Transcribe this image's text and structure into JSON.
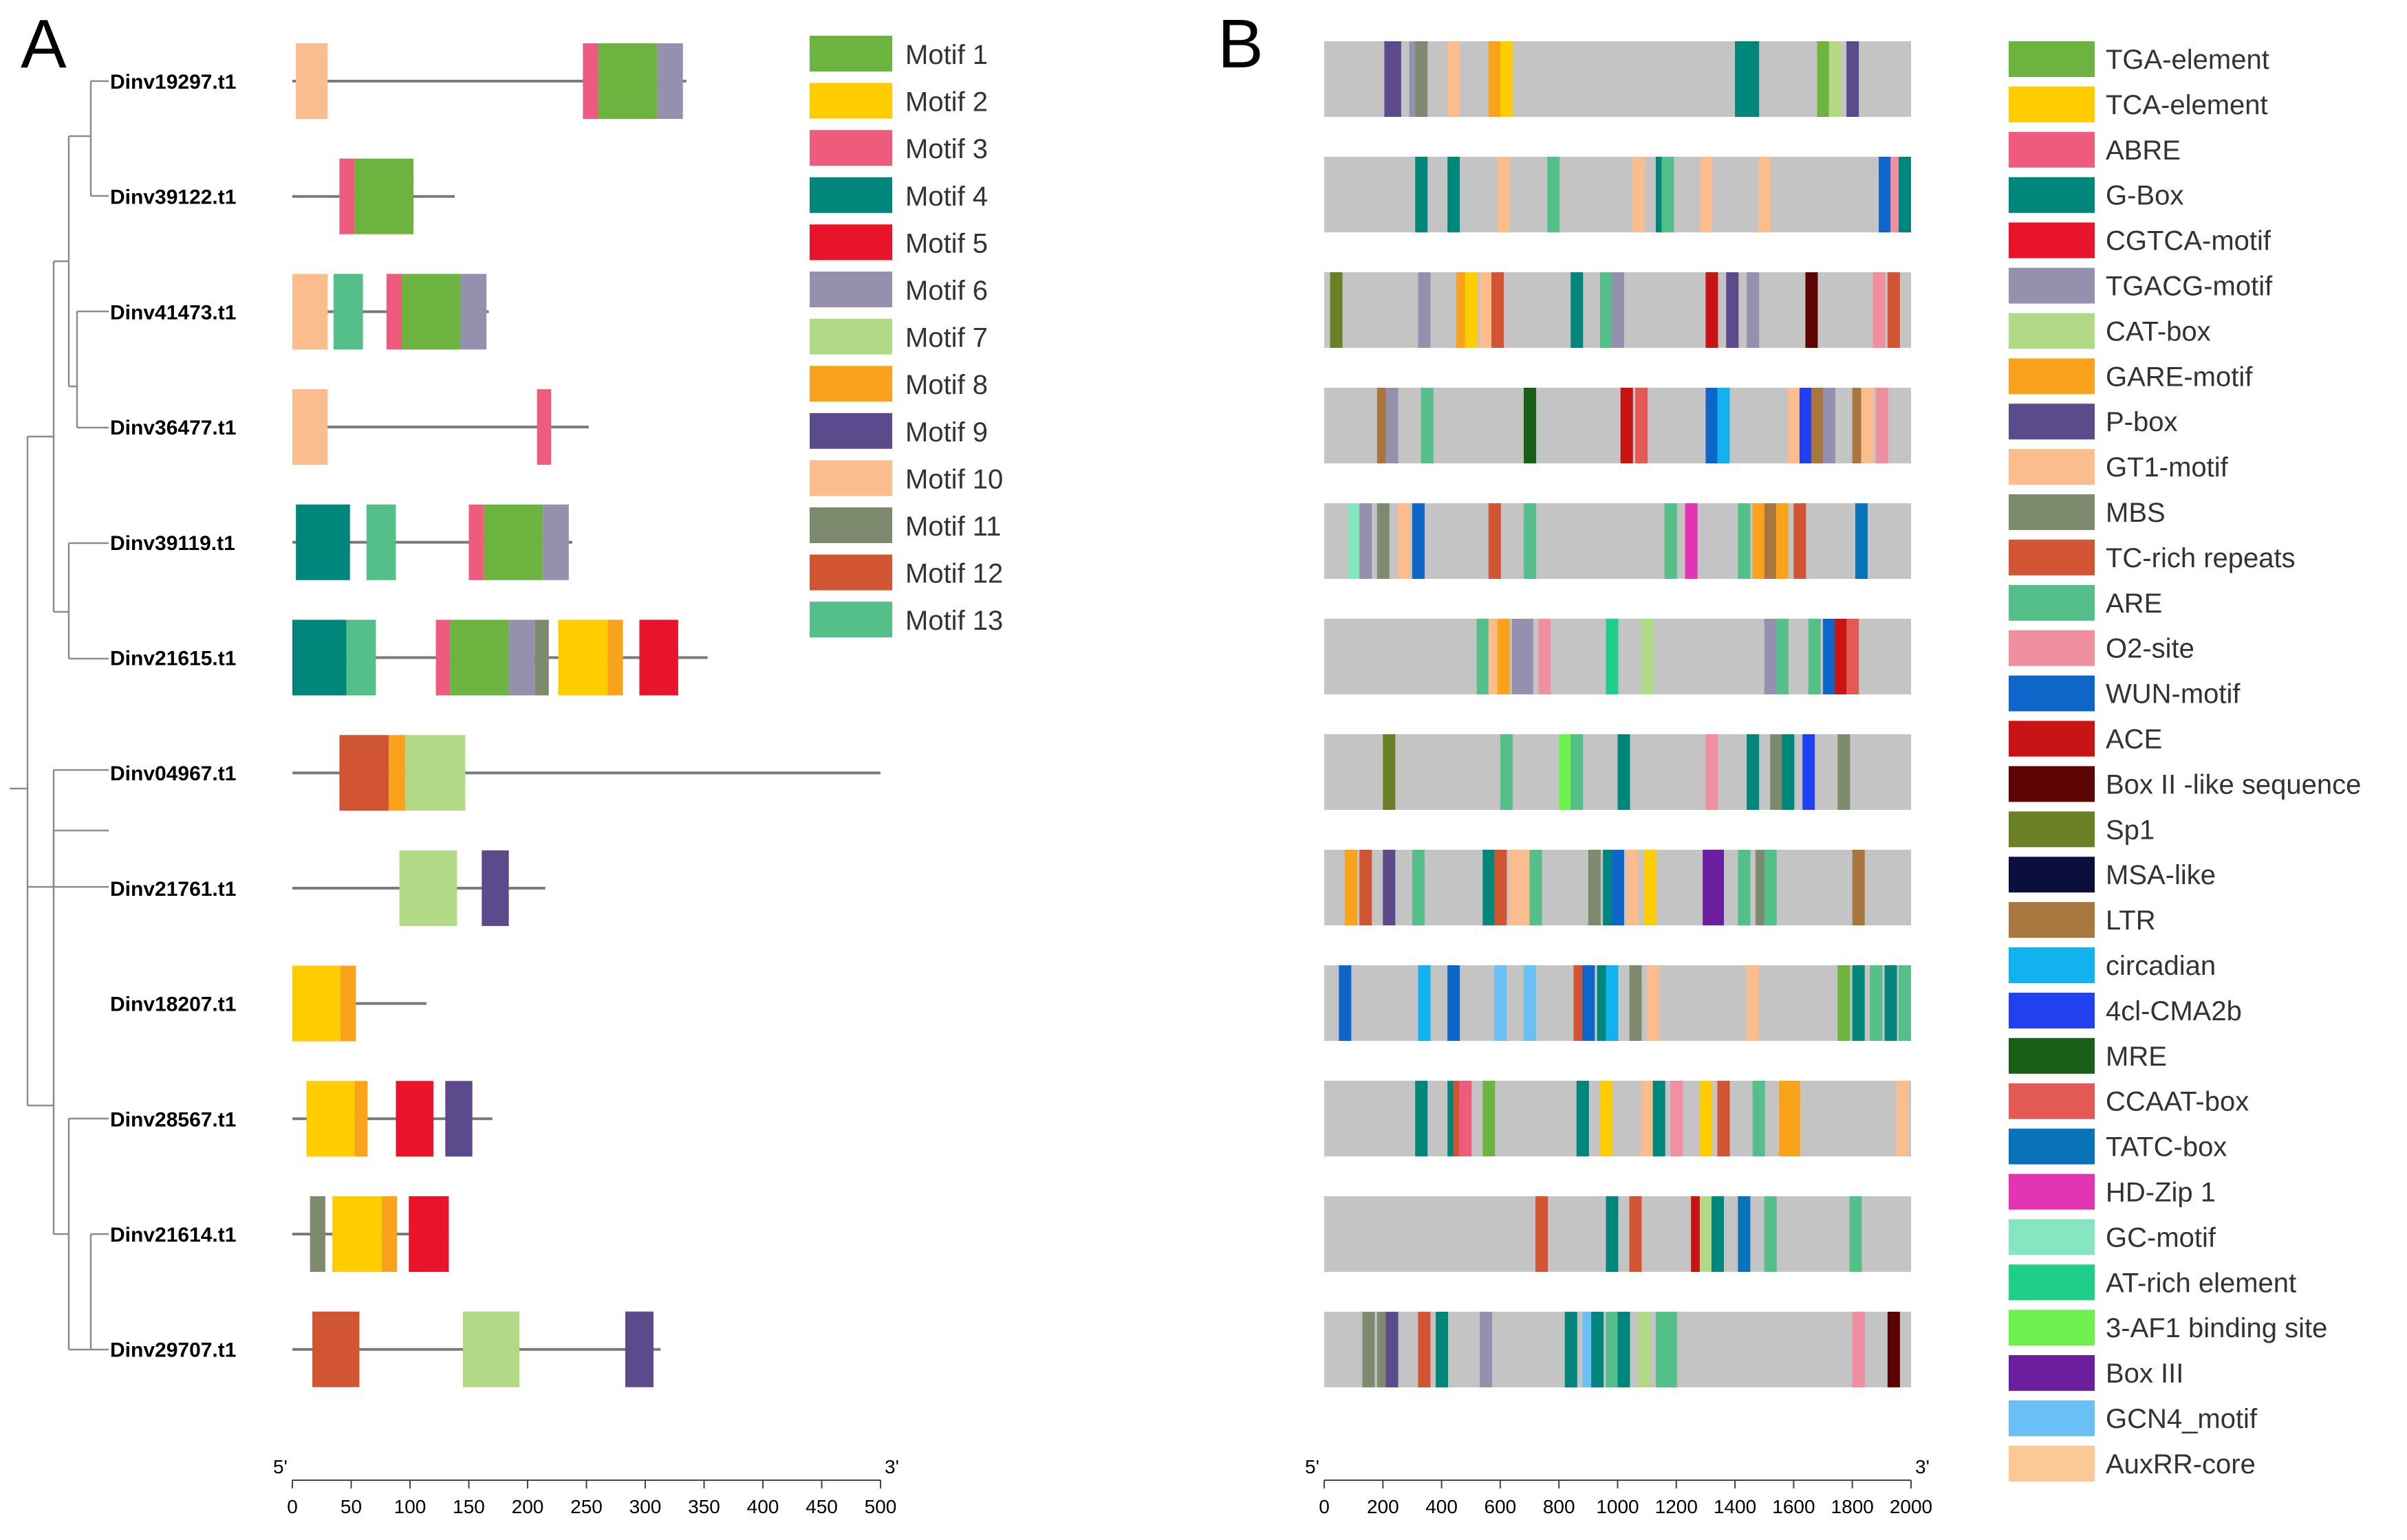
{
  "panel_a": {
    "letter": "A",
    "scale": {
      "min": 0,
      "max": 500,
      "ticks": [
        0,
        50,
        100,
        150,
        200,
        250,
        300,
        350,
        400,
        450,
        500
      ],
      "start_label": "5'",
      "end_label": "3'"
    },
    "legend": [
      {
        "name": "Motif 1",
        "color": "#6db33f"
      },
      {
        "name": "Motif 2",
        "color": "#ffcc00"
      },
      {
        "name": "Motif 3",
        "color": "#ef5b7d"
      },
      {
        "name": "Motif 4",
        "color": "#00867a"
      },
      {
        "name": "Motif 5",
        "color": "#e8142c"
      },
      {
        "name": "Motif 6",
        "color": "#9590ad"
      },
      {
        "name": "Motif 7",
        "color": "#b2da86"
      },
      {
        "name": "Motif 8",
        "color": "#f9a21b"
      },
      {
        "name": "Motif 9",
        "color": "#5b4a8c"
      },
      {
        "name": "Motif 10",
        "color": "#fbbd8e"
      },
      {
        "name": "Motif 11",
        "color": "#7e8a6e"
      },
      {
        "name": "Motif 12",
        "color": "#d15533"
      },
      {
        "name": "Motif 13",
        "color": "#55bf8a"
      }
    ],
    "genes": [
      {
        "name": "Dinv19297.t1",
        "length": 335,
        "motifs": [
          [
            3,
            30,
            10
          ],
          [
            247,
            260,
            3
          ],
          [
            260,
            310,
            1
          ],
          [
            310,
            332,
            6
          ]
        ]
      },
      {
        "name": "Dinv39122.t1",
        "length": 138,
        "motifs": [
          [
            40,
            53,
            3
          ],
          [
            53,
            103,
            1
          ]
        ]
      },
      {
        "name": "Dinv41473.t1",
        "length": 167,
        "motifs": [
          [
            0,
            30,
            10
          ],
          [
            35,
            60,
            13
          ],
          [
            80,
            93,
            3
          ],
          [
            93,
            143,
            1
          ],
          [
            143,
            165,
            6
          ]
        ]
      },
      {
        "name": "Dinv36477.t1",
        "length": 252,
        "motifs": [
          [
            0,
            30,
            10
          ],
          [
            208,
            220,
            3
          ]
        ]
      },
      {
        "name": "Dinv39119.t1",
        "length": 238,
        "motifs": [
          [
            3,
            49,
            4
          ],
          [
            63,
            88,
            13
          ],
          [
            150,
            163,
            3
          ],
          [
            163,
            213,
            1
          ],
          [
            213,
            235,
            6
          ]
        ]
      },
      {
        "name": "Dinv21615.t1",
        "length": 353,
        "motifs": [
          [
            0,
            46,
            4
          ],
          [
            46,
            71,
            13
          ],
          [
            122,
            134,
            3
          ],
          [
            134,
            184,
            1
          ],
          [
            184,
            206,
            6
          ],
          [
            206,
            218,
            11
          ],
          [
            226,
            268,
            2
          ],
          [
            268,
            281,
            8
          ],
          [
            295,
            328,
            5
          ]
        ]
      },
      {
        "name": "Dinv04967.t1",
        "length": 500,
        "motifs": [
          [
            40,
            82,
            12
          ],
          [
            82,
            96,
            8
          ],
          [
            96,
            147,
            7
          ]
        ]
      },
      {
        "name": "Dinv21761.t1",
        "length": 215,
        "motifs": [
          [
            91,
            140,
            7
          ],
          [
            161,
            184,
            9
          ]
        ]
      },
      {
        "name": "Dinv18207.t1",
        "length": 114,
        "motifs": [
          [
            0,
            41,
            2
          ],
          [
            41,
            54,
            8
          ]
        ]
      },
      {
        "name": "Dinv28567.t1",
        "length": 170,
        "motifs": [
          [
            12,
            53,
            2
          ],
          [
            53,
            64,
            8
          ],
          [
            88,
            120,
            5
          ],
          [
            130,
            153,
            9
          ]
        ]
      },
      {
        "name": "Dinv21614.t1",
        "length": 133,
        "motifs": [
          [
            15,
            28,
            11
          ],
          [
            34,
            76,
            2
          ],
          [
            76,
            89,
            8
          ],
          [
            99,
            133,
            5
          ]
        ]
      },
      {
        "name": "Dinv29707.t1",
        "length": 313,
        "motifs": [
          [
            17,
            57,
            12
          ],
          [
            145,
            193,
            7
          ],
          [
            283,
            307,
            9
          ]
        ]
      }
    ]
  },
  "panel_b": {
    "letter": "B",
    "scale": {
      "min": 0,
      "max": 2000,
      "ticks": [
        0,
        200,
        400,
        600,
        800,
        1000,
        1200,
        1400,
        1600,
        1800,
        2000
      ],
      "start_label": "5'",
      "end_label": "3'"
    },
    "legend": [
      {
        "name": "TGA-element",
        "color": "#6db33f"
      },
      {
        "name": "TCA-element",
        "color": "#ffcc00"
      },
      {
        "name": "ABRE",
        "color": "#ef5b7d"
      },
      {
        "name": "G-Box",
        "color": "#00867a"
      },
      {
        "name": "CGTCA-motif",
        "color": "#e8142c"
      },
      {
        "name": "TGACG-motif",
        "color": "#9590ad"
      },
      {
        "name": "CAT-box",
        "color": "#b2da86"
      },
      {
        "name": "GARE-motif",
        "color": "#f9a21b"
      },
      {
        "name": "P-box",
        "color": "#5b4a8c"
      },
      {
        "name": "GT1-motif",
        "color": "#fbbd8e"
      },
      {
        "name": "MBS",
        "color": "#7e8a6e"
      },
      {
        "name": "TC-rich repeats",
        "color": "#d15533"
      },
      {
        "name": "ARE",
        "color": "#55bf8a"
      },
      {
        "name": "O2-site",
        "color": "#ef8fa0"
      },
      {
        "name": "WUN-motif",
        "color": "#0f66c9"
      },
      {
        "name": "ACE",
        "color": "#c81414"
      },
      {
        "name": "Box II -like sequence",
        "color": "#5c0404"
      },
      {
        "name": "Sp1",
        "color": "#6b7f25"
      },
      {
        "name": "MSA-like",
        "color": "#0a0f3d"
      },
      {
        "name": "LTR",
        "color": "#a8773f"
      },
      {
        "name": "circadian",
        "color": "#12b2ef"
      },
      {
        "name": "4cl-CMA2b",
        "color": "#2140f0"
      },
      {
        "name": "MRE",
        "color": "#195f17"
      },
      {
        "name": "CCAAT-box",
        "color": "#e35a54"
      },
      {
        "name": "TATC-box",
        "color": "#0873b8"
      },
      {
        "name": "HD-Zip 1",
        "color": "#e234b3"
      },
      {
        "name": "GC-motif",
        "color": "#86e6c2"
      },
      {
        "name": "AT-rich element",
        "color": "#1fce88"
      },
      {
        "name": "3-AF1 binding site",
        "color": "#6ef04e"
      },
      {
        "name": "Box III",
        "color": "#6b1f9e"
      },
      {
        "name": "GCN4_motif",
        "color": "#6ac0f5"
      },
      {
        "name": "AuxRR-core",
        "color": "#fcc896"
      }
    ],
    "rows": [
      [
        [
          205,
          9
        ],
        [
          220,
          9
        ],
        [
          290,
          6
        ],
        [
          310,
          11
        ],
        [
          420,
          10
        ],
        [
          560,
          8
        ],
        [
          600,
          2
        ],
        [
          1400,
          4
        ],
        [
          1440,
          4
        ],
        [
          1680,
          1
        ],
        [
          1720,
          7
        ],
        [
          1780,
          9
        ]
      ],
      [
        [
          310,
          4
        ],
        [
          420,
          4
        ],
        [
          590,
          10
        ],
        [
          760,
          13
        ],
        [
          1050,
          10
        ],
        [
          1130,
          4
        ],
        [
          1150,
          13
        ],
        [
          1280,
          10
        ],
        [
          1480,
          10
        ],
        [
          1890,
          15
        ],
        [
          1930,
          14
        ],
        [
          1980,
          4
        ]
      ],
      [
        [
          20,
          18
        ],
        [
          320,
          6
        ],
        [
          450,
          8
        ],
        [
          480,
          2
        ],
        [
          530,
          10
        ],
        [
          570,
          12
        ],
        [
          840,
          4
        ],
        [
          940,
          13
        ],
        [
          980,
          6
        ],
        [
          1300,
          16
        ],
        [
          1370,
          9
        ],
        [
          1440,
          6
        ],
        [
          1640,
          17
        ],
        [
          1870,
          14
        ],
        [
          1920,
          12
        ]
      ],
      [
        [
          180,
          20
        ],
        [
          210,
          6
        ],
        [
          330,
          13
        ],
        [
          680,
          23
        ],
        [
          1010,
          16
        ],
        [
          1060,
          24
        ],
        [
          1300,
          15
        ],
        [
          1340,
          21
        ],
        [
          1580,
          10
        ],
        [
          1620,
          22
        ],
        [
          1660,
          20
        ],
        [
          1700,
          6
        ],
        [
          1800,
          20
        ],
        [
          1830,
          10
        ],
        [
          1880,
          14
        ]
      ],
      [
        [
          80,
          27
        ],
        [
          120,
          6
        ],
        [
          180,
          11
        ],
        [
          250,
          10
        ],
        [
          300,
          15
        ],
        [
          560,
          12
        ],
        [
          680,
          13
        ],
        [
          1160,
          13
        ],
        [
          1230,
          26
        ],
        [
          1410,
          13
        ],
        [
          1460,
          8
        ],
        [
          1500,
          20
        ],
        [
          1540,
          8
        ],
        [
          1600,
          12
        ],
        [
          1810,
          25
        ]
      ],
      [
        [
          520,
          13
        ],
        [
          560,
          10
        ],
        [
          590,
          8
        ],
        [
          640,
          6
        ],
        [
          670,
          6
        ],
        [
          730,
          14
        ],
        [
          960,
          28
        ],
        [
          1080,
          7
        ],
        [
          1500,
          6
        ],
        [
          1540,
          13
        ],
        [
          1650,
          13
        ],
        [
          1700,
          15
        ],
        [
          1740,
          16
        ],
        [
          1780,
          24
        ]
      ],
      [
        [
          200,
          18
        ],
        [
          600,
          13
        ],
        [
          800,
          29
        ],
        [
          840,
          13
        ],
        [
          1000,
          4
        ],
        [
          1300,
          14
        ],
        [
          1440,
          4
        ],
        [
          1520,
          11
        ],
        [
          1560,
          4
        ],
        [
          1630,
          22
        ],
        [
          1750,
          11
        ]
      ],
      [
        [
          70,
          8
        ],
        [
          120,
          12
        ],
        [
          200,
          9
        ],
        [
          300,
          13
        ],
        [
          540,
          4
        ],
        [
          580,
          12
        ],
        [
          630,
          10
        ],
        [
          670,
          10
        ],
        [
          700,
          13
        ],
        [
          900,
          11
        ],
        [
          950,
          4
        ],
        [
          980,
          15
        ],
        [
          1030,
          10
        ],
        [
          1090,
          2
        ],
        [
          1290,
          30
        ],
        [
          1320,
          30
        ],
        [
          1410,
          13
        ],
        [
          1470,
          11
        ],
        [
          1500,
          13
        ],
        [
          1800,
          20
        ]
      ],
      [
        [
          50,
          15
        ],
        [
          320,
          21
        ],
        [
          420,
          15
        ],
        [
          580,
          31
        ],
        [
          680,
          31
        ],
        [
          850,
          12
        ],
        [
          880,
          15
        ],
        [
          930,
          4
        ],
        [
          960,
          21
        ],
        [
          1040,
          11
        ],
        [
          1100,
          10
        ],
        [
          1440,
          10
        ],
        [
          1750,
          1
        ],
        [
          1800,
          4
        ],
        [
          1860,
          13
        ],
        [
          1910,
          4
        ],
        [
          1960,
          13
        ]
      ],
      [
        [
          310,
          4
        ],
        [
          420,
          4
        ],
        [
          440,
          12
        ],
        [
          460,
          3
        ],
        [
          540,
          1
        ],
        [
          860,
          4
        ],
        [
          940,
          2
        ],
        [
          1080,
          10
        ],
        [
          1120,
          4
        ],
        [
          1180,
          14
        ],
        [
          1280,
          2
        ],
        [
          1340,
          12
        ],
        [
          1460,
          13
        ],
        [
          1550,
          8
        ],
        [
          1580,
          8
        ],
        [
          1950,
          10
        ]
      ],
      [
        [
          720,
          12
        ],
        [
          960,
          4
        ],
        [
          1040,
          12
        ],
        [
          1250,
          16
        ],
        [
          1280,
          7
        ],
        [
          1320,
          4
        ],
        [
          1410,
          25
        ],
        [
          1500,
          13
        ],
        [
          1790,
          13
        ]
      ],
      [
        [
          130,
          11
        ],
        [
          180,
          11
        ],
        [
          210,
          9
        ],
        [
          320,
          12
        ],
        [
          380,
          4
        ],
        [
          530,
          6
        ],
        [
          820,
          4
        ],
        [
          880,
          31
        ],
        [
          910,
          4
        ],
        [
          960,
          13
        ],
        [
          1000,
          4
        ],
        [
          1070,
          7
        ],
        [
          1130,
          13
        ],
        [
          1160,
          13
        ],
        [
          1800,
          14
        ],
        [
          1920,
          17
        ]
      ]
    ]
  }
}
